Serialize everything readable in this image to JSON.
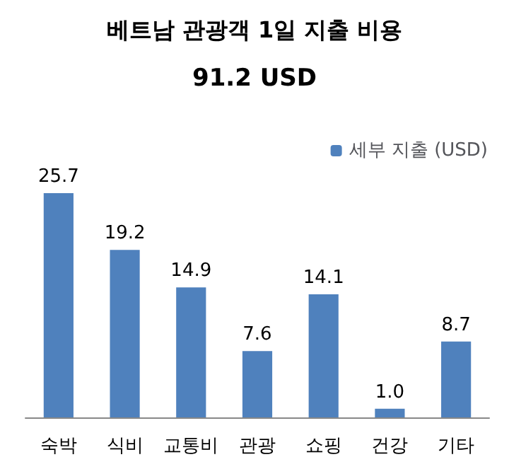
{
  "chart_data": {
    "type": "bar",
    "title": "베트남 관광객 1일 지출 비용",
    "subtitle": "91.2 USD",
    "categories": [
      "숙박",
      "식비",
      "교통비",
      "관광",
      "쇼핑",
      "건강",
      "기타"
    ],
    "series": [
      {
        "name": "세부 지출 (USD)",
        "color": "#4f81bd",
        "values": [
          25.7,
          19.2,
          14.9,
          7.6,
          14.1,
          1.0,
          8.7
        ],
        "value_labels": [
          "25.7",
          "19.2",
          "14.9",
          "7.6",
          "14.1",
          "1.0",
          "8.7"
        ]
      }
    ],
    "legend": "top right"
  }
}
